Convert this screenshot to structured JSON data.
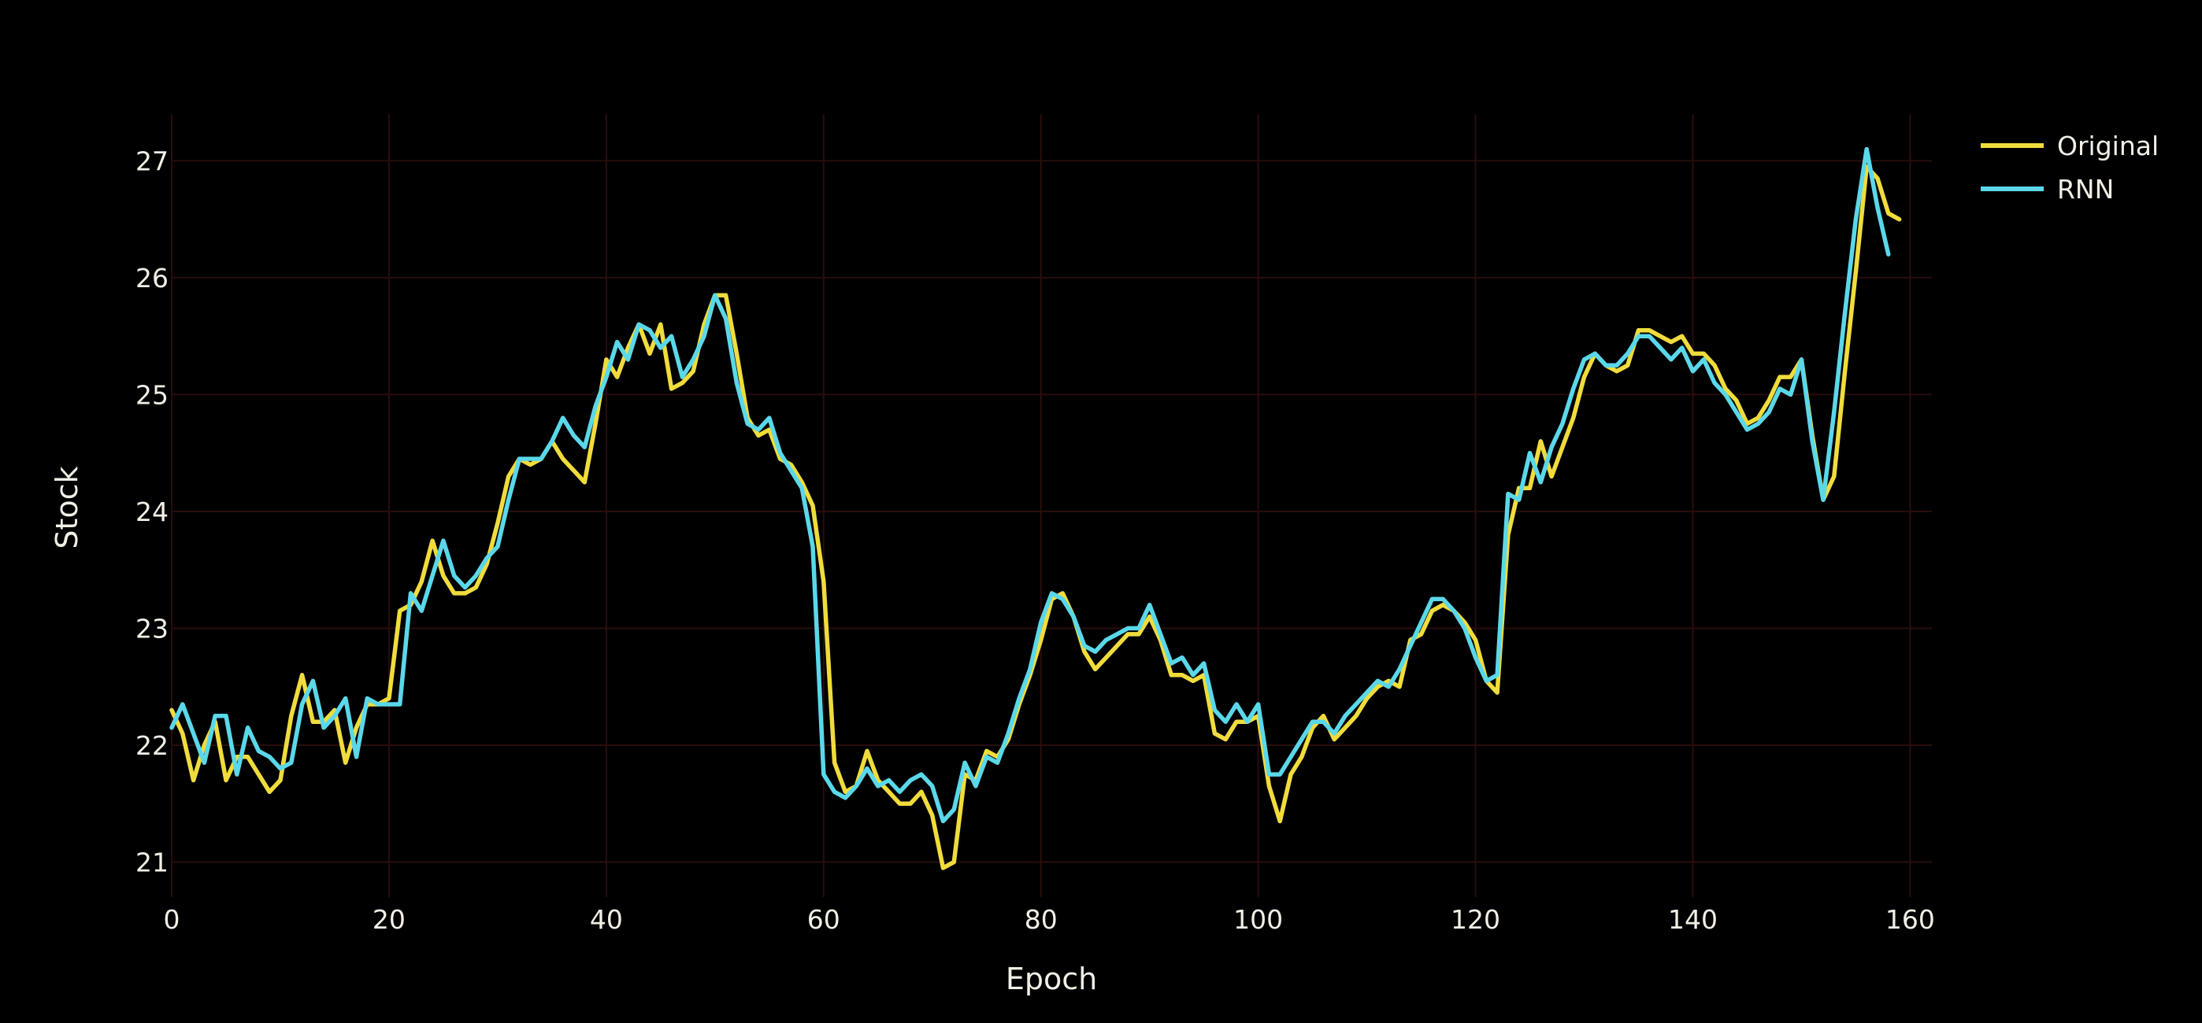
{
  "chart_data": {
    "type": "line",
    "title": "",
    "xlabel": "Epoch",
    "ylabel": "Stock",
    "xlim": [
      0,
      162
    ],
    "ylim": [
      20.7,
      27.4
    ],
    "xticks": [
      0,
      20,
      40,
      60,
      80,
      100,
      120,
      140,
      160
    ],
    "yticks": [
      21,
      22,
      23,
      24,
      25,
      26,
      27
    ],
    "grid": true,
    "background": "#000000",
    "legend_position": "top-right",
    "series": [
      {
        "name": "Original",
        "color": "#f0dc3c",
        "points": [
          [
            0,
            22.3
          ],
          [
            1,
            22.1
          ],
          [
            2,
            21.7
          ],
          [
            3,
            22.0
          ],
          [
            4,
            22.2
          ],
          [
            5,
            21.7
          ],
          [
            6,
            21.9
          ],
          [
            7,
            21.9
          ],
          [
            8,
            21.75
          ],
          [
            9,
            21.6
          ],
          [
            10,
            21.7
          ],
          [
            11,
            22.25
          ],
          [
            12,
            22.6
          ],
          [
            13,
            22.2
          ],
          [
            14,
            22.2
          ],
          [
            15,
            22.3
          ],
          [
            16,
            21.85
          ],
          [
            17,
            22.15
          ],
          [
            18,
            22.35
          ],
          [
            19,
            22.35
          ],
          [
            20,
            22.4
          ],
          [
            21,
            23.15
          ],
          [
            22,
            23.2
          ],
          [
            23,
            23.4
          ],
          [
            24,
            23.75
          ],
          [
            25,
            23.45
          ],
          [
            26,
            23.3
          ],
          [
            27,
            23.3
          ],
          [
            28,
            23.35
          ],
          [
            29,
            23.55
          ],
          [
            30,
            23.9
          ],
          [
            31,
            24.3
          ],
          [
            32,
            24.45
          ],
          [
            33,
            24.4
          ],
          [
            34,
            24.45
          ],
          [
            35,
            24.6
          ],
          [
            36,
            24.45
          ],
          [
            37,
            24.35
          ],
          [
            38,
            24.25
          ],
          [
            39,
            24.75
          ],
          [
            40,
            25.3
          ],
          [
            41,
            25.15
          ],
          [
            42,
            25.4
          ],
          [
            43,
            25.6
          ],
          [
            44,
            25.35
          ],
          [
            45,
            25.6
          ],
          [
            46,
            25.05
          ],
          [
            47,
            25.1
          ],
          [
            48,
            25.2
          ],
          [
            49,
            25.6
          ],
          [
            50,
            25.85
          ],
          [
            51,
            25.85
          ],
          [
            52,
            25.35
          ],
          [
            53,
            24.8
          ],
          [
            54,
            24.65
          ],
          [
            55,
            24.7
          ],
          [
            56,
            24.45
          ],
          [
            57,
            24.4
          ],
          [
            58,
            24.25
          ],
          [
            59,
            24.05
          ],
          [
            60,
            23.4
          ],
          [
            61,
            21.85
          ],
          [
            62,
            21.6
          ],
          [
            63,
            21.65
          ],
          [
            64,
            21.95
          ],
          [
            65,
            21.7
          ],
          [
            66,
            21.6
          ],
          [
            67,
            21.5
          ],
          [
            68,
            21.5
          ],
          [
            69,
            21.6
          ],
          [
            70,
            21.4
          ],
          [
            71,
            20.95
          ],
          [
            72,
            21.0
          ],
          [
            73,
            21.75
          ],
          [
            74,
            21.7
          ],
          [
            75,
            21.95
          ],
          [
            76,
            21.9
          ],
          [
            77,
            22.05
          ],
          [
            78,
            22.35
          ],
          [
            79,
            22.6
          ],
          [
            80,
            22.9
          ],
          [
            81,
            23.25
          ],
          [
            82,
            23.3
          ],
          [
            83,
            23.1
          ],
          [
            84,
            22.8
          ],
          [
            85,
            22.65
          ],
          [
            86,
            22.75
          ],
          [
            87,
            22.85
          ],
          [
            88,
            22.95
          ],
          [
            89,
            22.95
          ],
          [
            90,
            23.1
          ],
          [
            91,
            22.9
          ],
          [
            92,
            22.6
          ],
          [
            93,
            22.6
          ],
          [
            94,
            22.55
          ],
          [
            95,
            22.6
          ],
          [
            96,
            22.1
          ],
          [
            97,
            22.05
          ],
          [
            98,
            22.2
          ],
          [
            99,
            22.2
          ],
          [
            100,
            22.25
          ],
          [
            101,
            21.65
          ],
          [
            102,
            21.35
          ],
          [
            103,
            21.75
          ],
          [
            104,
            21.9
          ],
          [
            105,
            22.15
          ],
          [
            106,
            22.25
          ],
          [
            107,
            22.05
          ],
          [
            108,
            22.15
          ],
          [
            109,
            22.25
          ],
          [
            110,
            22.4
          ],
          [
            111,
            22.5
          ],
          [
            112,
            22.55
          ],
          [
            113,
            22.5
          ],
          [
            114,
            22.9
          ],
          [
            115,
            22.95
          ],
          [
            116,
            23.15
          ],
          [
            117,
            23.2
          ],
          [
            118,
            23.15
          ],
          [
            119,
            23.05
          ],
          [
            120,
            22.9
          ],
          [
            121,
            22.55
          ],
          [
            122,
            22.45
          ],
          [
            123,
            23.8
          ],
          [
            124,
            24.2
          ],
          [
            125,
            24.2
          ],
          [
            126,
            24.6
          ],
          [
            127,
            24.3
          ],
          [
            128,
            24.55
          ],
          [
            129,
            24.8
          ],
          [
            130,
            25.15
          ],
          [
            131,
            25.35
          ],
          [
            132,
            25.25
          ],
          [
            133,
            25.2
          ],
          [
            134,
            25.25
          ],
          [
            135,
            25.55
          ],
          [
            136,
            25.55
          ],
          [
            137,
            25.5
          ],
          [
            138,
            25.45
          ],
          [
            139,
            25.5
          ],
          [
            140,
            25.35
          ],
          [
            141,
            25.35
          ],
          [
            142,
            25.25
          ],
          [
            143,
            25.05
          ],
          [
            144,
            24.95
          ],
          [
            145,
            24.75
          ],
          [
            146,
            24.8
          ],
          [
            147,
            24.95
          ],
          [
            148,
            25.15
          ],
          [
            149,
            25.15
          ],
          [
            150,
            25.3
          ],
          [
            151,
            24.65
          ],
          [
            152,
            24.1
          ],
          [
            153,
            24.3
          ],
          [
            154,
            25.2
          ],
          [
            155,
            26.05
          ],
          [
            156,
            26.95
          ],
          [
            157,
            26.85
          ],
          [
            158,
            26.55
          ],
          [
            159,
            26.5
          ]
        ]
      },
      {
        "name": "RNN",
        "color": "#5ad8ea",
        "points": [
          [
            0,
            22.15
          ],
          [
            1,
            22.35
          ],
          [
            2,
            22.1
          ],
          [
            3,
            21.85
          ],
          [
            4,
            22.25
          ],
          [
            5,
            22.25
          ],
          [
            6,
            21.75
          ],
          [
            7,
            22.15
          ],
          [
            8,
            21.95
          ],
          [
            9,
            21.9
          ],
          [
            10,
            21.8
          ],
          [
            11,
            21.85
          ],
          [
            12,
            22.35
          ],
          [
            13,
            22.55
          ],
          [
            14,
            22.15
          ],
          [
            15,
            22.25
          ],
          [
            16,
            22.4
          ],
          [
            17,
            21.9
          ],
          [
            18,
            22.4
          ],
          [
            19,
            22.35
          ],
          [
            20,
            22.35
          ],
          [
            21,
            22.35
          ],
          [
            22,
            23.3
          ],
          [
            23,
            23.15
          ],
          [
            24,
            23.45
          ],
          [
            25,
            23.75
          ],
          [
            26,
            23.45
          ],
          [
            27,
            23.35
          ],
          [
            28,
            23.45
          ],
          [
            29,
            23.6
          ],
          [
            30,
            23.7
          ],
          [
            31,
            24.1
          ],
          [
            32,
            24.45
          ],
          [
            33,
            24.45
          ],
          [
            34,
            24.45
          ],
          [
            35,
            24.6
          ],
          [
            36,
            24.8
          ],
          [
            37,
            24.65
          ],
          [
            38,
            24.55
          ],
          [
            39,
            24.9
          ],
          [
            40,
            25.15
          ],
          [
            41,
            25.45
          ],
          [
            42,
            25.3
          ],
          [
            43,
            25.6
          ],
          [
            44,
            25.55
          ],
          [
            45,
            25.4
          ],
          [
            46,
            25.5
          ],
          [
            47,
            25.15
          ],
          [
            48,
            25.3
          ],
          [
            49,
            25.5
          ],
          [
            50,
            25.85
          ],
          [
            51,
            25.65
          ],
          [
            52,
            25.1
          ],
          [
            53,
            24.75
          ],
          [
            54,
            24.7
          ],
          [
            55,
            24.8
          ],
          [
            56,
            24.5
          ],
          [
            57,
            24.35
          ],
          [
            58,
            24.2
          ],
          [
            59,
            23.7
          ],
          [
            60,
            21.75
          ],
          [
            61,
            21.6
          ],
          [
            62,
            21.55
          ],
          [
            63,
            21.65
          ],
          [
            64,
            21.8
          ],
          [
            65,
            21.65
          ],
          [
            66,
            21.7
          ],
          [
            67,
            21.6
          ],
          [
            68,
            21.7
          ],
          [
            69,
            21.75
          ],
          [
            70,
            21.65
          ],
          [
            71,
            21.35
          ],
          [
            72,
            21.45
          ],
          [
            73,
            21.85
          ],
          [
            74,
            21.65
          ],
          [
            75,
            21.9
          ],
          [
            76,
            21.85
          ],
          [
            77,
            22.1
          ],
          [
            78,
            22.4
          ],
          [
            79,
            22.65
          ],
          [
            80,
            23.05
          ],
          [
            81,
            23.3
          ],
          [
            82,
            23.25
          ],
          [
            83,
            23.1
          ],
          [
            84,
            22.85
          ],
          [
            85,
            22.8
          ],
          [
            86,
            22.9
          ],
          [
            87,
            22.95
          ],
          [
            88,
            23.0
          ],
          [
            89,
            23.0
          ],
          [
            90,
            23.2
          ],
          [
            91,
            22.95
          ],
          [
            92,
            22.7
          ],
          [
            93,
            22.75
          ],
          [
            94,
            22.6
          ],
          [
            95,
            22.7
          ],
          [
            96,
            22.3
          ],
          [
            97,
            22.2
          ],
          [
            98,
            22.35
          ],
          [
            99,
            22.2
          ],
          [
            100,
            22.35
          ],
          [
            101,
            21.75
          ],
          [
            102,
            21.75
          ],
          [
            103,
            21.9
          ],
          [
            104,
            22.05
          ],
          [
            105,
            22.2
          ],
          [
            106,
            22.2
          ],
          [
            107,
            22.1
          ],
          [
            108,
            22.25
          ],
          [
            109,
            22.35
          ],
          [
            110,
            22.45
          ],
          [
            111,
            22.55
          ],
          [
            112,
            22.5
          ],
          [
            113,
            22.65
          ],
          [
            114,
            22.85
          ],
          [
            115,
            23.05
          ],
          [
            116,
            23.25
          ],
          [
            117,
            23.25
          ],
          [
            118,
            23.15
          ],
          [
            119,
            23.0
          ],
          [
            120,
            22.75
          ],
          [
            121,
            22.55
          ],
          [
            122,
            22.6
          ],
          [
            123,
            24.15
          ],
          [
            124,
            24.1
          ],
          [
            125,
            24.5
          ],
          [
            126,
            24.25
          ],
          [
            127,
            24.55
          ],
          [
            128,
            24.75
          ],
          [
            129,
            25.05
          ],
          [
            130,
            25.3
          ],
          [
            131,
            25.35
          ],
          [
            132,
            25.25
          ],
          [
            133,
            25.25
          ],
          [
            134,
            25.35
          ],
          [
            135,
            25.5
          ],
          [
            136,
            25.5
          ],
          [
            137,
            25.4
          ],
          [
            138,
            25.3
          ],
          [
            139,
            25.4
          ],
          [
            140,
            25.2
          ],
          [
            141,
            25.3
          ],
          [
            142,
            25.1
          ],
          [
            143,
            25.0
          ],
          [
            144,
            24.85
          ],
          [
            145,
            24.7
          ],
          [
            146,
            24.75
          ],
          [
            147,
            24.85
          ],
          [
            148,
            25.05
          ],
          [
            149,
            25.0
          ],
          [
            150,
            25.3
          ],
          [
            151,
            24.6
          ],
          [
            152,
            24.1
          ],
          [
            153,
            24.85
          ],
          [
            154,
            25.7
          ],
          [
            155,
            26.5
          ],
          [
            156,
            27.1
          ],
          [
            157,
            26.6
          ],
          [
            158,
            26.2
          ]
        ]
      }
    ]
  }
}
